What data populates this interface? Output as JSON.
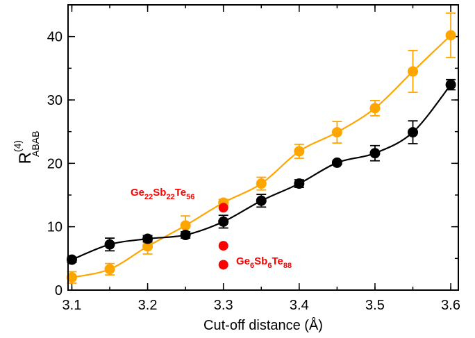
{
  "chart_data": {
    "type": "scatter",
    "title": "",
    "xlabel": "Cut-off distance (Å)",
    "ylabel": {
      "base": "R",
      "superscript": "(4)",
      "subscript": "ABAB"
    },
    "xlim": [
      3.095,
      3.61
    ],
    "ylim": [
      0,
      45
    ],
    "xticks": [
      "3.1",
      "3.2",
      "3.3",
      "3.4",
      "3.5",
      "3.6"
    ],
    "yticks": [
      "0",
      "10",
      "20",
      "30",
      "40"
    ],
    "x_minor_step": 0.05,
    "y_minor_step": 5,
    "grid": false,
    "series": [
      {
        "color": "#000000",
        "x": [
          3.1,
          3.15,
          3.2,
          3.25,
          3.3,
          3.35,
          3.4,
          3.45,
          3.5,
          3.55,
          3.6
        ],
        "y": [
          4.8,
          7.2,
          8.1,
          8.7,
          10.8,
          14.1,
          16.8,
          20.1,
          21.6,
          24.9,
          32.4
        ],
        "err": [
          0.4,
          1.0,
          0.5,
          0.5,
          1.0,
          1.0,
          0.6,
          0.3,
          1.2,
          1.8,
          0.8
        ]
      },
      {
        "color": "#ffa500",
        "x": [
          3.1,
          3.15,
          3.2,
          3.25,
          3.3,
          3.35,
          3.4,
          3.45,
          3.5,
          3.55,
          3.6
        ],
        "y": [
          2.0,
          3.3,
          6.9,
          10.2,
          13.8,
          16.8,
          21.9,
          24.9,
          28.7,
          34.5,
          40.2
        ],
        "err": [
          0.9,
          0.9,
          1.2,
          1.5,
          0.5,
          1.0,
          1.1,
          1.7,
          1.2,
          3.3,
          3.5
        ]
      }
    ],
    "red_points": {
      "color": "#ff0000",
      "x": [
        3.3,
        3.3,
        3.3
      ],
      "y": [
        13.0,
        7.0,
        4.0
      ]
    },
    "annotations": [
      {
        "parts": [
          [
            "Ge",
            ""
          ],
          [
            "22",
            "sub"
          ],
          [
            "Sb",
            ""
          ],
          [
            "22",
            "sub"
          ],
          [
            "Te",
            ""
          ],
          [
            "56",
            "sub"
          ]
        ]
      },
      {
        "parts": [
          [
            "Ge",
            ""
          ],
          [
            "6",
            "sub"
          ],
          [
            "Sb",
            ""
          ],
          [
            "6",
            "sub"
          ],
          [
            "Te",
            ""
          ],
          [
            "88",
            "sub"
          ]
        ]
      }
    ]
  }
}
